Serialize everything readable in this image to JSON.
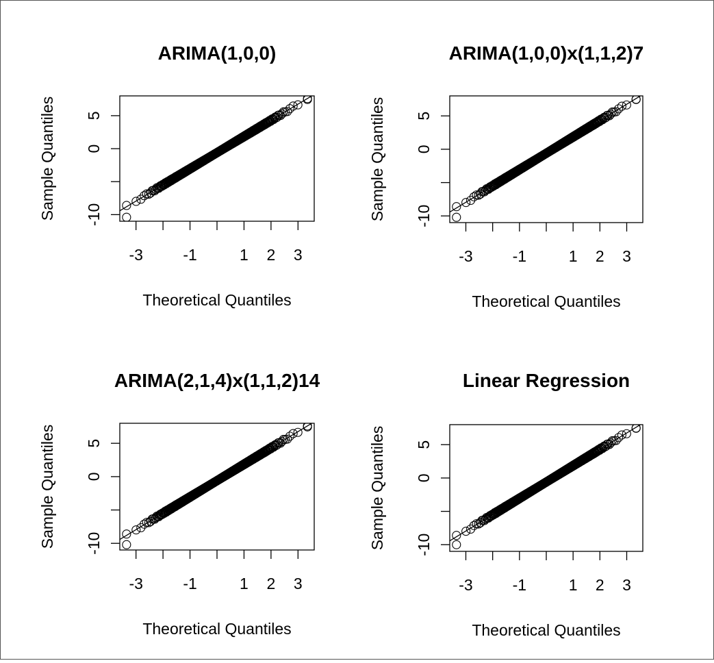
{
  "chart_data": [
    {
      "type": "scatter",
      "subtype": "qq-plot",
      "title": "ARIMA(1,0,0)",
      "xlabel": "Theoretical Quantiles",
      "ylabel": "Sample Quantiles",
      "xlim": [
        -3.6,
        3.6
      ],
      "ylim": [
        -11.0,
        8.0
      ],
      "xticks": [
        -3,
        -2,
        -1,
        0,
        1,
        2,
        3
      ],
      "xtick_labels": [
        "-3",
        "",
        "-1",
        "",
        "1",
        "2",
        "3"
      ],
      "yticks": [
        -10,
        -5,
        0,
        5
      ],
      "ytick_labels": [
        "-10",
        "",
        "0",
        "5"
      ],
      "qq_slope": 2.45,
      "qq_intercept": -0.6,
      "n_points": 650,
      "extremes": [
        {
          "x": -3.35,
          "y": -10.4
        },
        {
          "x": 3.35,
          "y": 7.6
        }
      ],
      "reference_line": true,
      "grid": false
    },
    {
      "type": "scatter",
      "subtype": "qq-plot",
      "title": "ARIMA(1,0,0)x(1,1,2)7",
      "xlabel": "Theoretical Quantiles",
      "ylabel": "Sample Quantiles",
      "xlim": [
        -3.6,
        3.6
      ],
      "ylim": [
        -11.0,
        8.0
      ],
      "xticks": [
        -3,
        -2,
        -1,
        0,
        1,
        2,
        3
      ],
      "xtick_labels": [
        "-3",
        "",
        "-1",
        "",
        "1",
        "2",
        "3"
      ],
      "yticks": [
        -10,
        -5,
        0,
        5
      ],
      "ytick_labels": [
        "-10",
        "",
        "0",
        "5"
      ],
      "qq_slope": 2.45,
      "qq_intercept": -0.6,
      "n_points": 650,
      "extremes": [
        {
          "x": -3.35,
          "y": -10.2
        },
        {
          "x": 3.35,
          "y": 7.5
        }
      ],
      "reference_line": true,
      "grid": false
    },
    {
      "type": "scatter",
      "subtype": "qq-plot",
      "title": "ARIMA(2,1,4)x(1,1,2)14",
      "xlabel": "Theoretical Quantiles",
      "ylabel": "Sample Quantiles",
      "xlim": [
        -3.6,
        3.6
      ],
      "ylim": [
        -11.0,
        8.0
      ],
      "xticks": [
        -3,
        -2,
        -1,
        0,
        1,
        2,
        3
      ],
      "xtick_labels": [
        "-3",
        "",
        "-1",
        "",
        "1",
        "2",
        "3"
      ],
      "yticks": [
        -10,
        -5,
        0,
        5
      ],
      "ytick_labels": [
        "-10",
        "",
        "0",
        "5"
      ],
      "qq_slope": 2.45,
      "qq_intercept": -0.6,
      "n_points": 650,
      "extremes": [
        {
          "x": -3.35,
          "y": -10.2
        },
        {
          "x": 3.35,
          "y": 7.6
        }
      ],
      "reference_line": true,
      "grid": false
    },
    {
      "type": "scatter",
      "subtype": "qq-plot",
      "title": "Linear Regression",
      "xlabel": "Theoretical Quantiles",
      "ylabel": "Sample Quantiles",
      "xlim": [
        -3.6,
        3.6
      ],
      "ylim": [
        -11.0,
        8.0
      ],
      "xticks": [
        -3,
        -2,
        -1,
        0,
        1,
        2,
        3
      ],
      "xtick_labels": [
        "-3",
        "",
        "-1",
        "",
        "1",
        "2",
        "3"
      ],
      "yticks": [
        -10,
        -5,
        0,
        5
      ],
      "ytick_labels": [
        "-10",
        "",
        "0",
        "5"
      ],
      "qq_slope": 2.45,
      "qq_intercept": -0.6,
      "n_points": 650,
      "extremes": [
        {
          "x": -3.35,
          "y": -10.0
        },
        {
          "x": 3.35,
          "y": 7.5
        }
      ],
      "reference_line": true,
      "grid": false
    }
  ]
}
